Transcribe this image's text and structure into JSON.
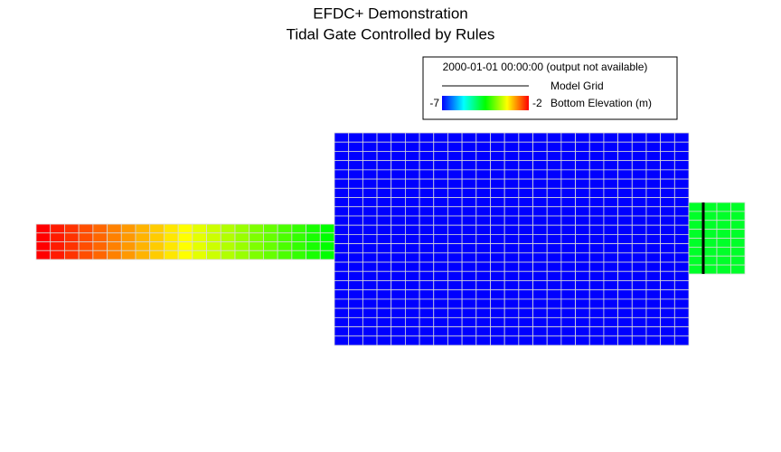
{
  "title": [
    "EFDC+ Demonstration",
    "Tidal Gate Controlled by Rules"
  ],
  "legend": {
    "timestamp": "2000-01-01 00:00:00 (output not available)",
    "grid_label": "Model Grid",
    "colorbar": {
      "min": -7,
      "max": -2,
      "label": "Bottom Elevation (m)"
    }
  },
  "grid": {
    "west_channel": [
      -2,
      -2.13,
      -2.25,
      -2.38,
      -2.5,
      -2.63,
      -2.75,
      -2.88,
      -3,
      -3.13,
      -3.25,
      -3.38,
      -3.5,
      -3.63,
      -3.75,
      -3.88,
      -4,
      -4.13,
      -4.25,
      -4.38,
      -4.5
    ],
    "basin": -7,
    "east_channel": -4.7
  }
}
